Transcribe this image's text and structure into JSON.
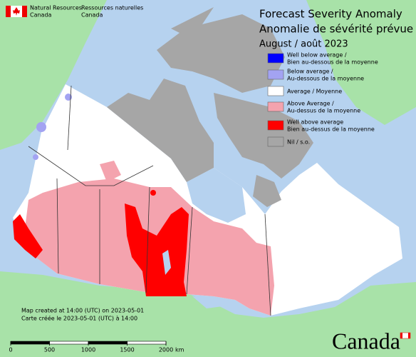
{
  "header": {
    "agency_en": [
      "Natural Resources",
      "Canada"
    ],
    "agency_fr": [
      "Ressources naturelles",
      "Canada"
    ]
  },
  "title": [
    "Forecast Severity Anomaly",
    "Anomalie de sévérité prévue"
  ],
  "period": "August / août 2023",
  "legend": [
    {
      "label": [
        "Well below average /",
        "Bien au-dessous de la moyenne"
      ],
      "color": "#0000ff"
    },
    {
      "label": [
        "Below average /",
        "Au-dessous de la moyenne"
      ],
      "color": "#a3a3f2"
    },
    {
      "label": [
        "Average / Moyenne"
      ],
      "color": "#ffffff"
    },
    {
      "label": [
        "Above Average /",
        "Au-dessus de la moyenne"
      ],
      "color": "#f4a3ae"
    },
    {
      "label": [
        "Well above average",
        "Bien au-dessus de la moyenne"
      ],
      "color": "#ff0000"
    },
    {
      "label": [
        "Nil / s.o."
      ],
      "color": "#a6a6a6"
    }
  ],
  "footnote": [
    "Map created at 14:00 (UTC) on 2023-05-01",
    "Carte créée le 2023-05-01 (UTC) à 14:00"
  ],
  "scale": {
    "ticks": [
      0,
      500,
      1000,
      1500,
      2000
    ],
    "unit": "km"
  },
  "wordmark": "Canada"
}
